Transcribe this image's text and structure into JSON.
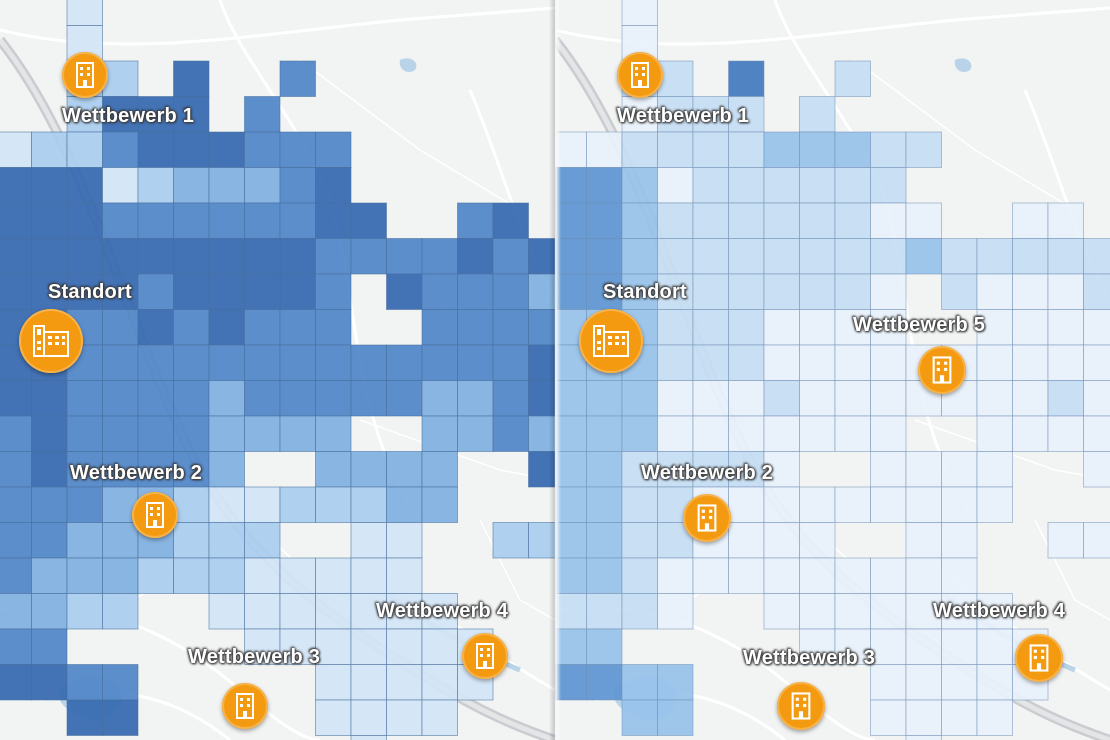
{
  "map_left": {
    "labels": {
      "wettbewerb_1": "Wettbewerb 1",
      "standort": "Standort",
      "wettbewerb_2": "Wettbewerb 2",
      "wettbewerb_3": "Wettbewerb 3",
      "wettbewerb_4": "Wettbewerb 4"
    },
    "markers": {
      "standort": "hospital-building-icon",
      "competitor": "building-icon"
    }
  },
  "map_right": {
    "labels": {
      "wettbewerb_1": "Wettbewerb 1",
      "standort": "Standort",
      "wettbewerb_5": "Wettbewerb 5",
      "wettbewerb_2": "Wettbewerb 2",
      "wettbewerb_3": "Wettbewerb 3",
      "wettbewerb_4": "Wettbewerb 4"
    },
    "markers": {
      "standort": "hospital-building-icon",
      "competitor": "building-icon"
    }
  },
  "colors": {
    "marker_orange": "#f39a10",
    "grid_dark": "#2f68b3",
    "grid_light": "#e8f1fb",
    "water": "#b9d3e8"
  }
}
